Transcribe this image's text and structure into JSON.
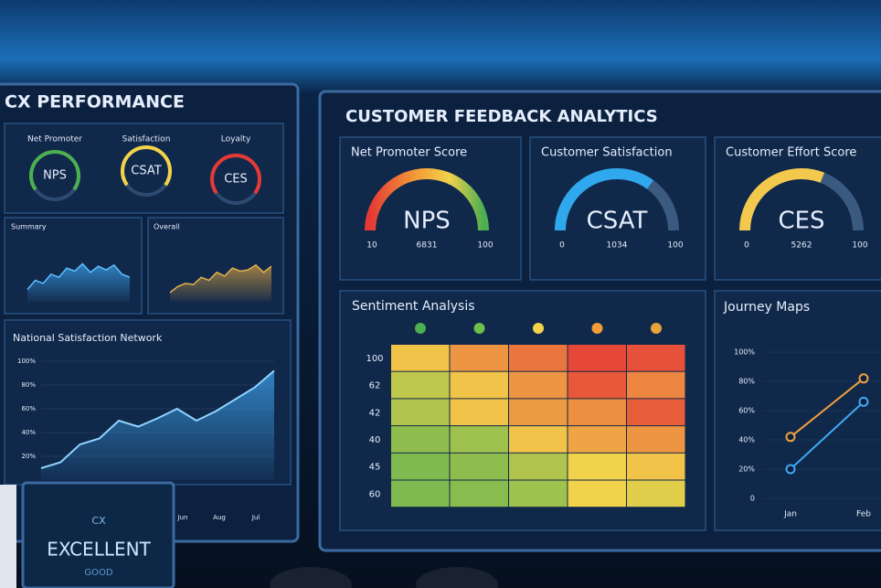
{
  "left_panel": {
    "title": "CX PERFORMANCE",
    "gauges": [
      {
        "label": "Net Promoter",
        "value_text": "NPS"
      },
      {
        "label": "Satisfaction",
        "value_text": "CSAT"
      },
      {
        "label": "Loyalty",
        "value_text": "CES"
      }
    ],
    "mini_charts": [
      {
        "title": "Summary",
        "ylim": [
          0,
          100
        ],
        "values": [
          20,
          35,
          30,
          45,
          40,
          55,
          50,
          62,
          48,
          58,
          52,
          60,
          45,
          40
        ]
      },
      {
        "title": "Overall",
        "ylim": [
          0,
          100
        ],
        "values": [
          15,
          25,
          30,
          28,
          40,
          35,
          48,
          42,
          55,
          50,
          52,
          60,
          48,
          58
        ]
      }
    ],
    "network_chart": {
      "title": "National Satisfaction Network",
      "ylim": [
        0,
        100
      ],
      "yticks": [
        {
          "value": 100,
          "label": "100%"
        },
        {
          "value": 80,
          "label": "80%"
        },
        {
          "value": 60,
          "label": "60%"
        },
        {
          "value": 40,
          "label": "40%"
        },
        {
          "value": 20,
          "label": "20%"
        }
      ],
      "xticks": [
        "Jun",
        "Aug",
        "Jul"
      ],
      "values": [
        10,
        15,
        30,
        35,
        50,
        45,
        52,
        60,
        50,
        58,
        68,
        78,
        92
      ]
    },
    "word_cloud": [
      "CX",
      "EXCELLENT",
      "GOOD"
    ]
  },
  "right_panel": {
    "title": "CUSTOMER FEEDBACK ANALYTICS",
    "cards": [
      {
        "title": "Net Promoter Score",
        "label": "NPS",
        "min": 10,
        "value": 6831,
        "max": 100
      },
      {
        "title": "Customer Satisfaction",
        "label": "CSAT",
        "min": 0,
        "value": 1034,
        "max": 100
      },
      {
        "title": "Customer Effort Score",
        "label": "CES",
        "min": 0,
        "value": 5262,
        "max": 100
      }
    ],
    "sentiment": {
      "title": "Sentiment Analysis",
      "rows": [
        "100",
        "62",
        "42",
        "40",
        "45",
        "60"
      ],
      "vlim": [
        0,
        100
      ],
      "values": [
        [
          55,
          70,
          80,
          95,
          92
        ],
        [
          35,
          55,
          70,
          90,
          75
        ],
        [
          30,
          55,
          68,
          72,
          88
        ],
        [
          20,
          25,
          55,
          65,
          70
        ],
        [
          15,
          20,
          30,
          50,
          55
        ],
        [
          15,
          18,
          25,
          50,
          45
        ]
      ]
    },
    "journey": {
      "title": "Journey Maps",
      "ylim": [
        0,
        100
      ],
      "yticks": [
        {
          "value": 100,
          "label": "100%"
        },
        {
          "value": 80,
          "label": "80%"
        },
        {
          "value": 60,
          "label": "60%"
        },
        {
          "value": 40,
          "label": "40%"
        },
        {
          "value": 20,
          "label": "20%"
        },
        0
      ],
      "categories": [
        "Jan",
        "Feb"
      ],
      "series": [
        {
          "color": "#f0a040",
          "values": [
            42,
            82
          ]
        },
        {
          "color": "#3fa9f5",
          "values": [
            20,
            66
          ]
        }
      ]
    }
  }
}
